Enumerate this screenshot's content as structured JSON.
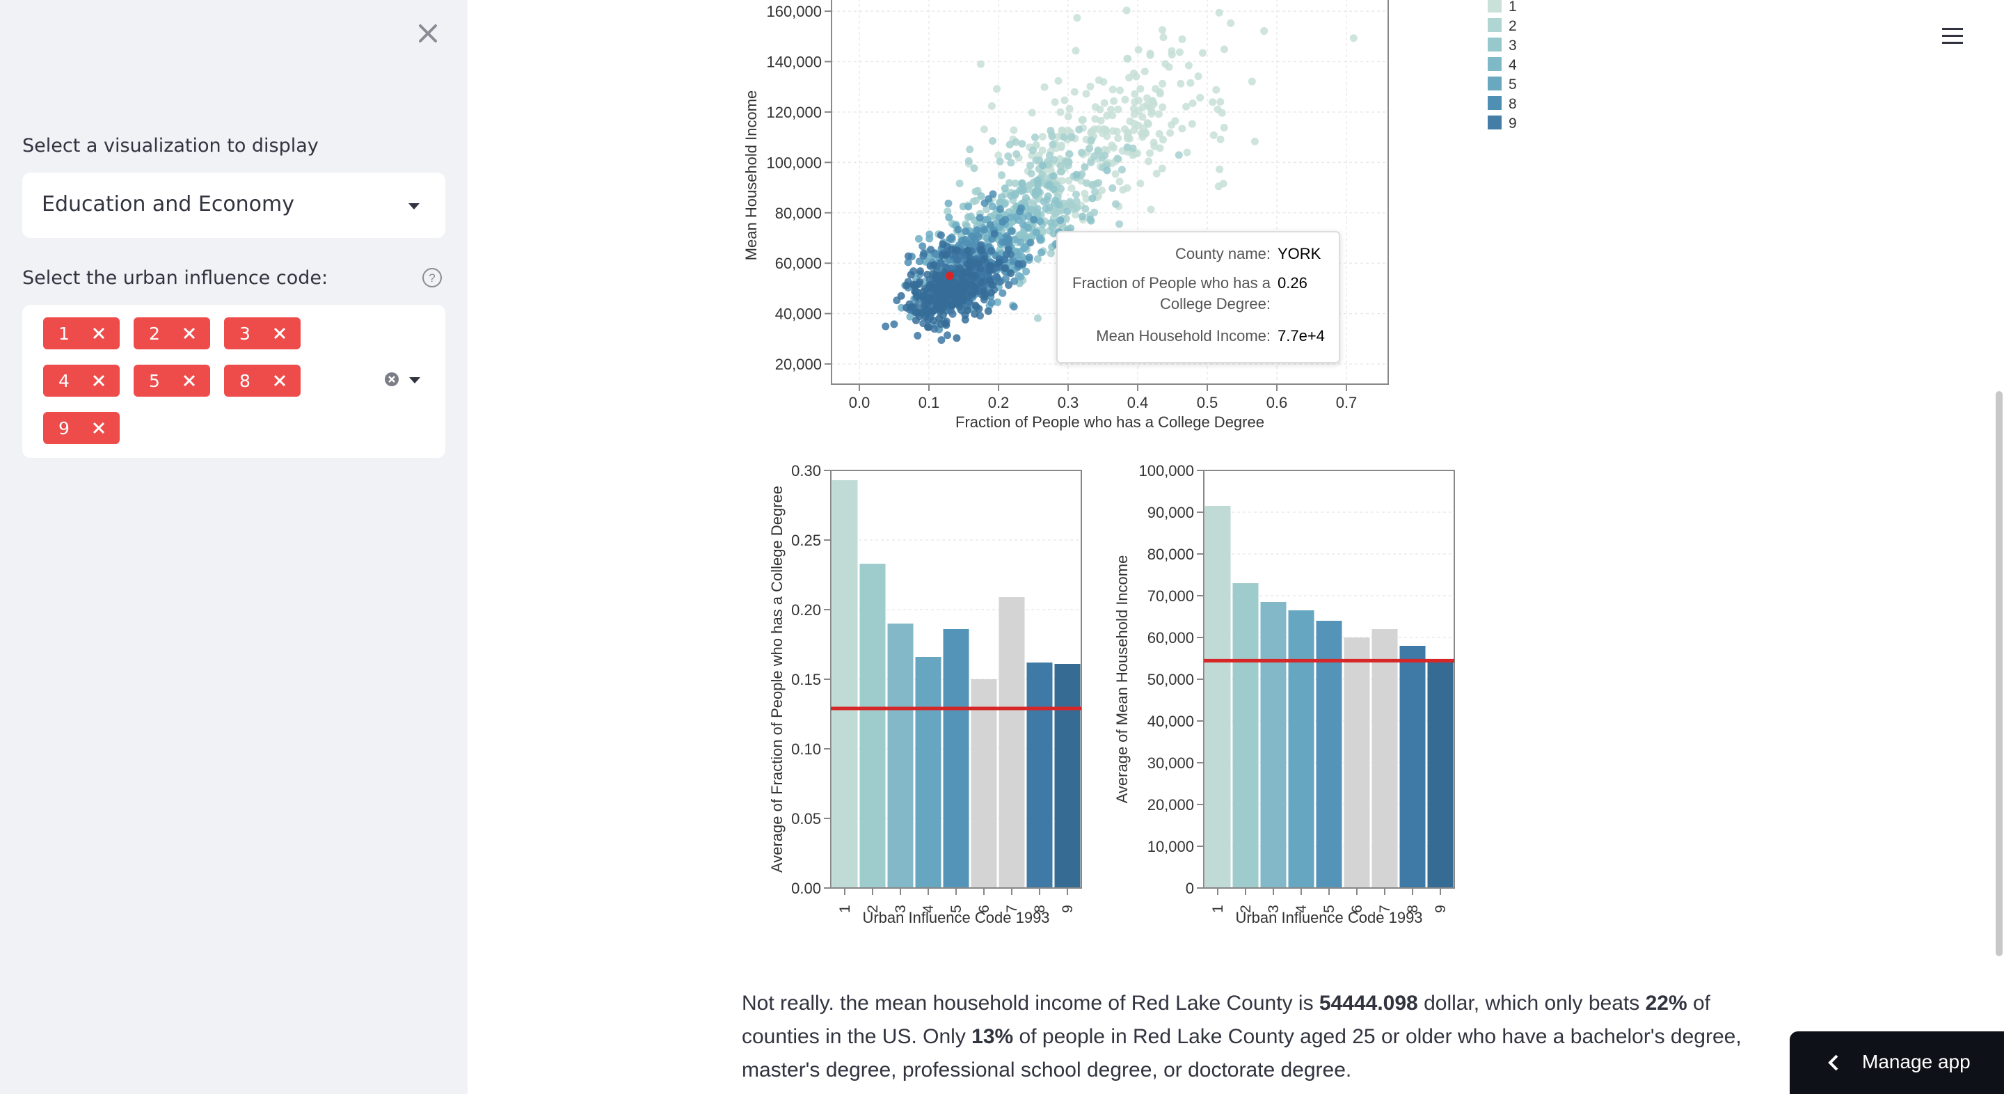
{
  "sidebar": {
    "viz_label": "Select a visualization to display",
    "viz_selected": "Education and Economy",
    "uic_label": "Select the urban influence code:",
    "uic_tags": [
      "1",
      "2",
      "3",
      "4",
      "5",
      "8",
      "9"
    ]
  },
  "tooltip": {
    "county_key": "County name:",
    "county_val": "YORK",
    "frac_key": "Fraction of People who has a College Degree:",
    "frac_val": "0.26",
    "income_key": "Mean Household Income:",
    "income_val": "7.7e+4"
  },
  "paragraph": {
    "p1": "Not really. the mean household income of Red Lake County is ",
    "income": "54444.098",
    "p2": " dollar, which only beats ",
    "beats": "22%",
    "p3": " of counties in the US. Only ",
    "pct": "13%",
    "p4": " of people in Red Lake County aged 25 or older who have a bachelor's degree, master's degree, professional school degree, or doctorate degree."
  },
  "manage_app": "Manage app",
  "colors": {
    "accent": "#ee4b4b",
    "sidebar_bg": "#f0f2f6",
    "ref_line": "#d62728"
  },
  "chart_data": [
    {
      "type": "scatter",
      "xlabel": "Fraction of People who has a College Degree",
      "ylabel": "Mean Household Income",
      "xticks": [
        "0.0",
        "0.1",
        "0.2",
        "0.3",
        "0.4",
        "0.5",
        "0.6",
        "0.7"
      ],
      "yticks": [
        "20,000",
        "40,000",
        "60,000",
        "80,000",
        "100,000",
        "120,000",
        "140,000",
        "160,000"
      ],
      "xlim": [
        -0.04,
        0.76
      ],
      "ylim": [
        12000,
        165000
      ],
      "legend": {
        "placement": "top-right",
        "entries": [
          "1",
          "2",
          "3",
          "4",
          "5",
          "8",
          "9"
        ]
      },
      "highlight": {
        "x": 0.13,
        "y": 55000
      },
      "grid": true
    },
    {
      "type": "bar",
      "categories": [
        "1",
        "2",
        "3",
        "4",
        "5",
        "6",
        "7",
        "8",
        "9"
      ],
      "values": [
        0.293,
        0.233,
        0.19,
        0.166,
        0.186,
        0.15,
        0.209,
        0.162,
        0.161
      ],
      "xlabel": "Urban Influence Code 1993",
      "ylabel": "Average of Fraction of People who has a College Degree",
      "ylim": [
        0,
        0.3
      ],
      "yticks": [
        "0.00",
        "0.05",
        "0.10",
        "0.15",
        "0.20",
        "0.25",
        "0.30"
      ],
      "reference_line": 0.129,
      "grid": true
    },
    {
      "type": "bar",
      "categories": [
        "1",
        "2",
        "3",
        "4",
        "5",
        "6",
        "7",
        "8",
        "9"
      ],
      "values": [
        91500,
        73000,
        68500,
        66500,
        64000,
        60000,
        62000,
        58000,
        54500
      ],
      "xlabel": "Urban Influence Code 1993",
      "ylabel": "Average of Mean Household Income",
      "ylim": [
        0,
        100000
      ],
      "yticks": [
        "0",
        "10,000",
        "20,000",
        "30,000",
        "40,000",
        "50,000",
        "60,000",
        "70,000",
        "80,000",
        "90,000",
        "100,000"
      ],
      "reference_line": 54444,
      "grid": true
    }
  ]
}
